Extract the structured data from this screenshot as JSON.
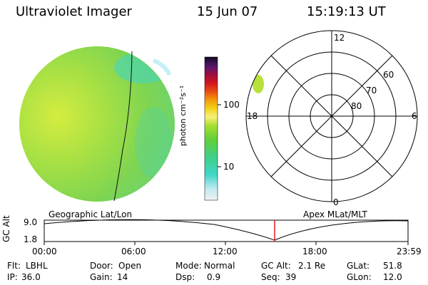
{
  "header": {
    "title": "Ultraviolet Imager",
    "date": "15 Jun 07",
    "time": "15:19:13 UT"
  },
  "colorbar": {
    "unit_label": "photon cm⁻²s⁻¹",
    "ticks": [
      "100",
      "10"
    ]
  },
  "polar_plot": {
    "mlt_labels": {
      "top": "12",
      "left": "18",
      "right": "6",
      "bottom": "0"
    },
    "lat_labels": [
      "60",
      "70",
      "80"
    ]
  },
  "altitude_plot": {
    "left_title": "Geographic Lat/Lon",
    "right_title": "Apex MLat/MLT",
    "axis_label": "GC Alt",
    "y_ticks": [
      "9.0",
      "1.8"
    ],
    "x_ticks": [
      "00:00",
      "06:00",
      "12:00",
      "18:00",
      "23:59"
    ]
  },
  "status": {
    "row1": [
      {
        "label": "Flt:",
        "value": "LBHL"
      },
      {
        "label": "Door:",
        "value": "Open"
      },
      {
        "label": "Mode:",
        "value": "Normal"
      },
      {
        "label": "GC Alt:",
        "value": "2.1 Re"
      },
      {
        "label": "GLat:",
        "value": "51.8"
      }
    ],
    "row2": [
      {
        "label": "IP:",
        "value": "36.0"
      },
      {
        "label": "Gain:",
        "value": "14"
      },
      {
        "label": "Dsp:",
        "value": "0.9"
      },
      {
        "label": "Seq:",
        "value": "39"
      },
      {
        "label": "GLon:",
        "value": "12.0"
      }
    ]
  },
  "colors": {
    "disk_main": "#7ed34a",
    "disk_bright": "#d6ec3a",
    "disk_dim": "#3fd6c9",
    "marker_line": "#e02020"
  }
}
